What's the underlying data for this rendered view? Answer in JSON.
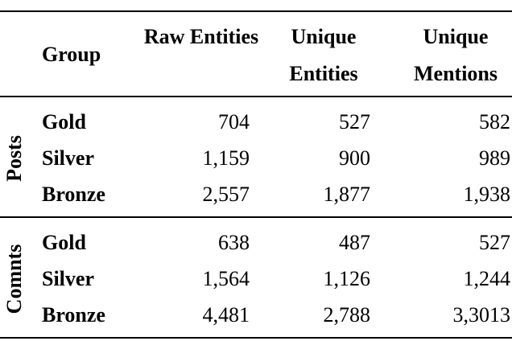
{
  "table": {
    "header": [
      "Group",
      "Raw Entities",
      "Unique Entities",
      "Unique Mentions"
    ],
    "sections": [
      {
        "label": "Posts",
        "rows": [
          [
            "Gold",
            "704",
            "527",
            "582"
          ],
          [
            "Silver",
            "1,159",
            "900",
            "989"
          ],
          [
            "Bronze",
            "2,557",
            "1,877",
            "1,938"
          ]
        ]
      },
      {
        "label": "Comnts",
        "rows": [
          [
            "Gold",
            "638",
            "487",
            "527"
          ],
          [
            "Silver",
            "1,564",
            "1,126",
            "1,244"
          ],
          [
            "Bronze",
            "4,481",
            "2,788",
            "3,3013"
          ]
        ]
      }
    ]
  }
}
